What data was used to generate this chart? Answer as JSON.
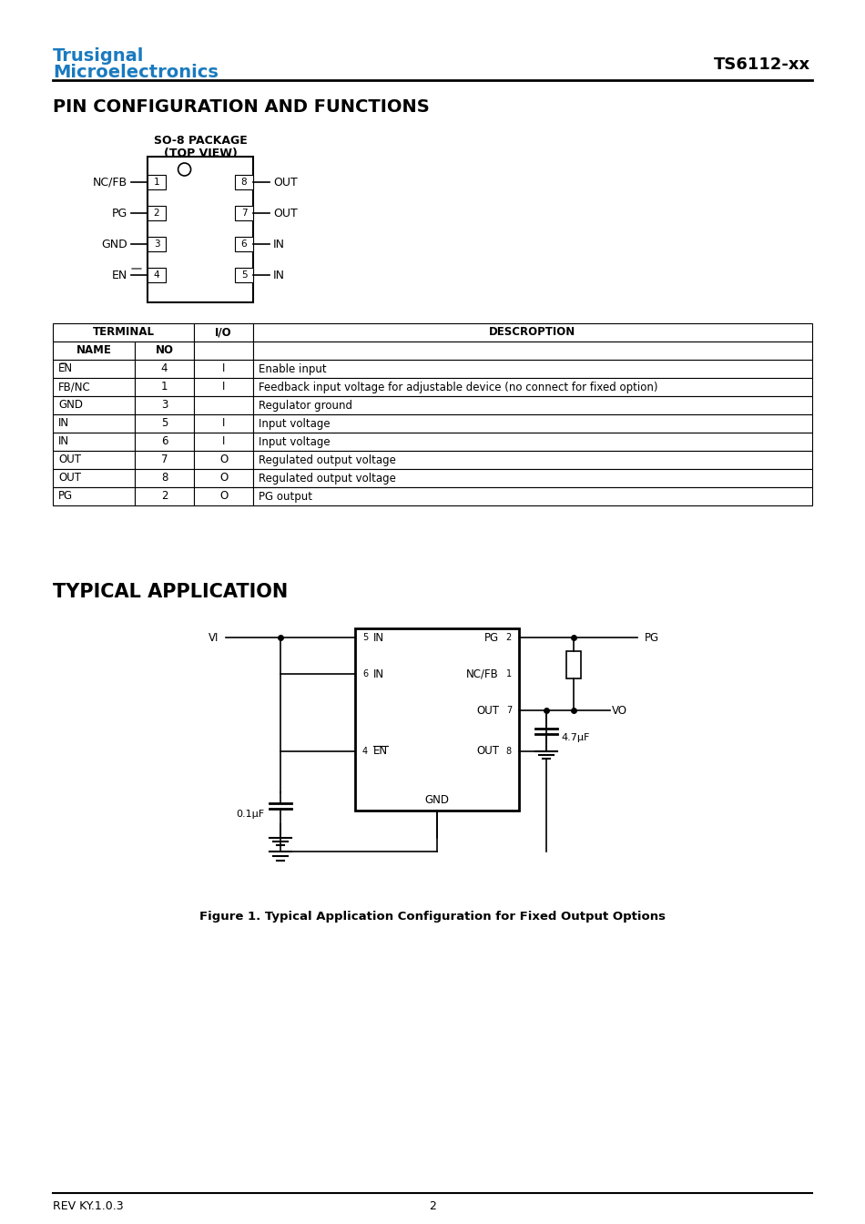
{
  "page_bg": "#ffffff",
  "title_color": "#1a7abf",
  "text_color": "#000000",
  "logo_line1": "Trusignal",
  "logo_line2": "Microelectronics",
  "part_number": "TS6112-xx",
  "section1_title": "PIN CONFIGURATION AND FUNCTIONS",
  "package_label1": "SO-8 PACKAGE",
  "package_label2": "(TOP VIEW)",
  "left_pins": [
    {
      "name": "NC/FB",
      "num": "1"
    },
    {
      "name": "PG",
      "num": "2"
    },
    {
      "name": "GND",
      "num": "3"
    },
    {
      "name": "EN",
      "num": "4",
      "overline": true
    }
  ],
  "right_pins": [
    {
      "name": "OUT",
      "num": "8"
    },
    {
      "name": "OUT",
      "num": "7"
    },
    {
      "name": "IN",
      "num": "6"
    },
    {
      "name": "IN",
      "num": "5"
    }
  ],
  "table_headers": [
    "TERMINAL",
    "I/O",
    "DESCROPTION"
  ],
  "table_subheaders": [
    "NAME",
    "NO"
  ],
  "table_rows": [
    {
      "name": "EN",
      "no": "4",
      "io": "I",
      "desc": "Enable input",
      "overline": true
    },
    {
      "name": "FB/NC",
      "no": "1",
      "io": "I",
      "desc": "Feedback input voltage for adjustable device (no connect for fixed option)"
    },
    {
      "name": "GND",
      "no": "3",
      "io": "",
      "desc": "Regulator ground"
    },
    {
      "name": "IN",
      "no": "5",
      "io": "I",
      "desc": "Input voltage"
    },
    {
      "name": "IN",
      "no": "6",
      "io": "I",
      "desc": "Input voltage"
    },
    {
      "name": "OUT",
      "no": "7",
      "io": "O",
      "desc": "Regulated output voltage"
    },
    {
      "name": "OUT",
      "no": "8",
      "io": "O",
      "desc": "Regulated output voltage"
    },
    {
      "name": "PG",
      "no": "2",
      "io": "O",
      "desc": "PG output"
    }
  ],
  "section2_title": "TYPICAL APPLICATION",
  "fig_caption": "Figure 1. Typical Application Configuration for Fixed Output Options",
  "footer_rev": "REV KY.1.0.3",
  "footer_page": "2"
}
